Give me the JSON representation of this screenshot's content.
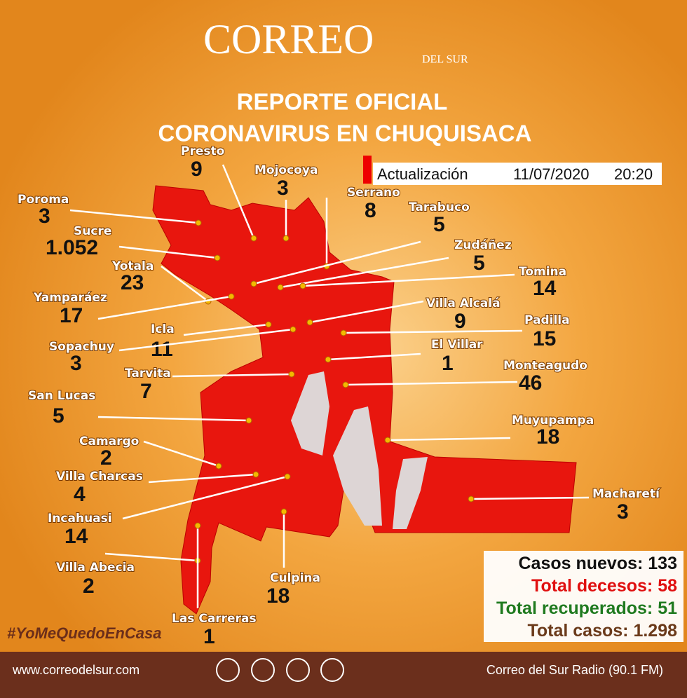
{
  "header": {
    "logo": "CORREO",
    "logo_sub": "DEL SUR",
    "title": "REPORTE OFICIAL",
    "subtitle": "CORONAVIRUS EN CHUQUISACA"
  },
  "update": {
    "label": "Actualización",
    "date": "11/07/2020",
    "time": "20:20"
  },
  "municipalities": [
    {
      "name": "Poroma",
      "cases": 3
    },
    {
      "name": "Sucre",
      "cases": "1.052"
    },
    {
      "name": "Yotala",
      "cases": 23
    },
    {
      "name": "Yamparáez",
      "cases": 17
    },
    {
      "name": "Icla",
      "cases": 11
    },
    {
      "name": "Sopachuy",
      "cases": 3
    },
    {
      "name": "Tarvita",
      "cases": 7
    },
    {
      "name": "San Lucas",
      "cases": 5
    },
    {
      "name": "Camargo",
      "cases": 2
    },
    {
      "name": "Villa Charcas",
      "cases": 4
    },
    {
      "name": "Incahuasi",
      "cases": 14
    },
    {
      "name": "Villa Abecia",
      "cases": 2
    },
    {
      "name": "Las Carreras",
      "cases": 1
    },
    {
      "name": "Culpina",
      "cases": 18
    },
    {
      "name": "Presto",
      "cases": 9
    },
    {
      "name": "Mojocoya",
      "cases": 3
    },
    {
      "name": "Serrano",
      "cases": 8
    },
    {
      "name": "Tarabuco",
      "cases": 5
    },
    {
      "name": "Zudáñez",
      "cases": 5
    },
    {
      "name": "Tomina",
      "cases": 14
    },
    {
      "name": "Villa Alcalá",
      "cases": 9
    },
    {
      "name": "Padilla",
      "cases": 15
    },
    {
      "name": "El Villar",
      "cases": 1
    },
    {
      "name": "Monteagudo",
      "cases": 46
    },
    {
      "name": "Muyupampa",
      "cases": 18
    },
    {
      "name": "Macharetí",
      "cases": 3
    }
  ],
  "summary": [
    {
      "label": "Casos nuevos:",
      "value": 133
    },
    {
      "label": "Total decesos:",
      "value": 58
    },
    {
      "label": "Total recuperados:",
      "value": 51
    },
    {
      "label": "Total casos:",
      "value": "1.298"
    }
  ],
  "hashtag": "#YoMeQuedoEnCasa",
  "footer": {
    "website": "www.correodelsur.com",
    "radio": "Correo del Sur Radio (90.1 FM)"
  }
}
